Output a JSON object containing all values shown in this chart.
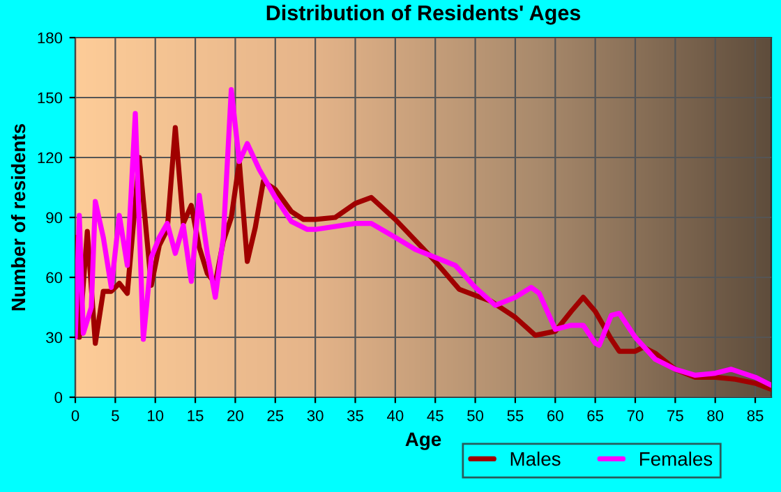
{
  "chart_data": {
    "type": "line",
    "title": "Distribution of Residents' Ages",
    "xlabel": "Age",
    "ylabel": "Number of residents",
    "xlim": [
      0,
      87
    ],
    "xticks": [
      0,
      5,
      10,
      15,
      20,
      25,
      30,
      35,
      40,
      45,
      50,
      55,
      60,
      65,
      70,
      75,
      80,
      85
    ],
    "ylim": [
      0,
      180
    ],
    "yticks": [
      0,
      30,
      60,
      90,
      120,
      150,
      180
    ],
    "grid": true,
    "legend": "bottom right",
    "marker": "none",
    "line_style": "solid",
    "series": [
      {
        "name": "Males",
        "color": "#a00000",
        "x": [
          0,
          0.5,
          1.5,
          2.5,
          3.5,
          4.5,
          5.5,
          6.5,
          8,
          9.5,
          10.5,
          11.5,
          12.5,
          13.5,
          14.5,
          15.5,
          16.5,
          17.5,
          18.5,
          19.5,
          20.5,
          21.5,
          22.5,
          23.5,
          25,
          27,
          28.5,
          30,
          32.5,
          35,
          37,
          40,
          45,
          48,
          50,
          52,
          55,
          57.5,
          60,
          62,
          63.5,
          65,
          67,
          68,
          70,
          71,
          72.5,
          75,
          77.5,
          80,
          82.5,
          85,
          87
        ],
        "values": [
          80,
          30,
          83,
          27,
          53,
          53,
          57,
          52,
          120,
          56,
          76,
          84,
          135,
          87,
          96,
          75,
          62,
          57,
          78,
          90,
          118,
          68,
          85,
          108,
          104,
          93,
          89,
          89,
          90,
          97,
          100,
          89,
          68,
          54,
          51,
          48,
          40,
          31,
          33,
          43,
          50,
          43,
          29,
          23,
          23,
          25,
          22,
          14,
          10,
          10,
          9,
          7,
          4
        ]
      },
      {
        "name": "Females",
        "color": "#ff00ff",
        "x": [
          0,
          0.5,
          1,
          2,
          2.5,
          3.5,
          4.5,
          5.5,
          6.5,
          7.5,
          8.5,
          9.5,
          10.5,
          11.5,
          12.5,
          13.5,
          14.5,
          15.5,
          16.5,
          17.5,
          18.5,
          19.5,
          20.5,
          21.5,
          23,
          25,
          27,
          29,
          30,
          35,
          37,
          40,
          42.5,
          45,
          47.5,
          50,
          52.5,
          55,
          57,
          58,
          60,
          62,
          63.5,
          65,
          65.5,
          67,
          68,
          70,
          72.5,
          75,
          77.5,
          80,
          82,
          85,
          87
        ],
        "values": [
          30,
          91,
          32,
          45,
          98,
          80,
          55,
          91,
          66,
          142,
          29,
          70,
          80,
          87,
          72,
          86,
          58,
          101,
          72,
          50,
          80,
          154,
          118,
          127,
          114,
          100,
          88,
          84,
          84,
          87,
          87,
          80,
          74,
          70,
          66,
          55,
          46,
          50,
          55,
          52,
          34,
          36,
          36,
          27,
          26,
          41,
          42,
          30,
          19,
          14,
          11,
          12,
          14,
          10,
          6
        ]
      }
    ]
  }
}
